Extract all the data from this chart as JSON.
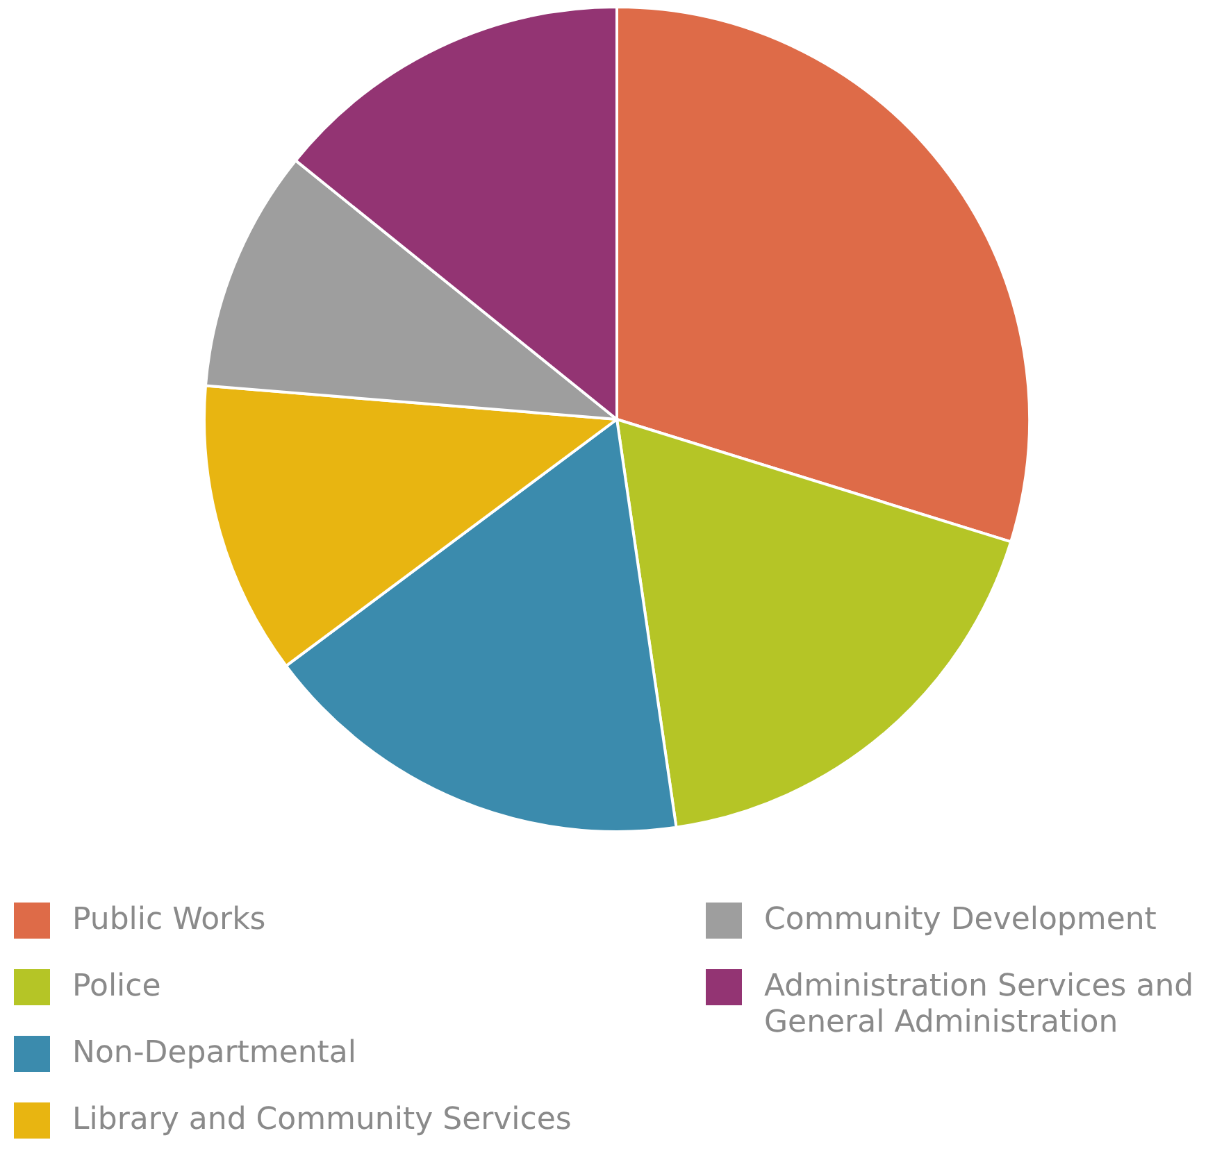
{
  "chart_data": {
    "type": "pie",
    "categories": [
      "Public Works",
      "Police",
      "Non-Departmental",
      "Library and Community Services",
      "Community Development",
      "Administration Services and General Administration"
    ],
    "values": [
      29.8,
      17.9,
      17.1,
      11.5,
      9.5,
      14.2
    ],
    "colors": [
      "#de6b48",
      "#b5c526",
      "#3b8bad",
      "#e8b511",
      "#9e9e9e",
      "#933473"
    ],
    "legend": "bottom"
  }
}
